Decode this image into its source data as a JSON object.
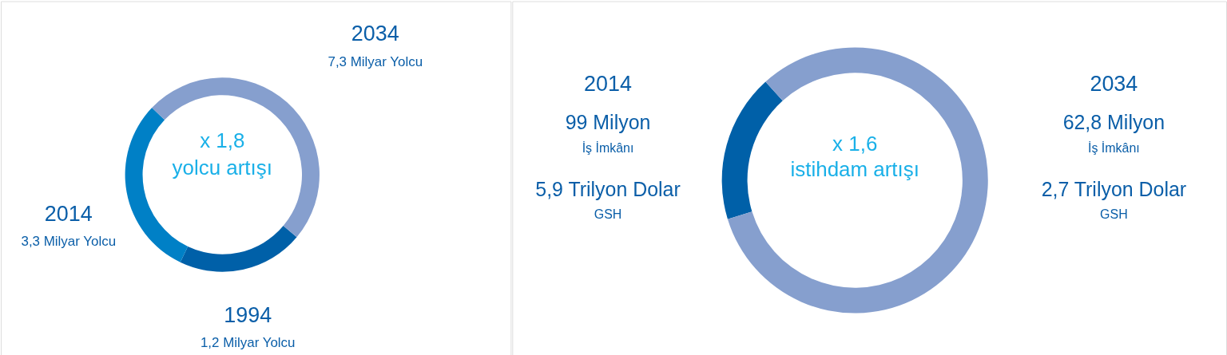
{
  "chart_data": [
    {
      "type": "donut",
      "categories": [
        "1994",
        "2014",
        "2034"
      ],
      "values": [
        21,
        30,
        49
      ],
      "colors": [
        "#0060a8",
        "#0080c6",
        "#869fce"
      ],
      "annotations": [
        "x 1,8",
        "yolcu artışı",
        "1,2 Milyar Yolcu",
        "3,3 Milyar Yolcu",
        "7,3 Milyar Yolcu"
      ]
    },
    {
      "type": "donut",
      "categories": [
        "2014",
        "2034"
      ],
      "values": [
        18,
        82
      ],
      "colors": [
        "#0060a8",
        "#869fce"
      ],
      "annotations": [
        "x 1,6",
        "istihdam artışı",
        "99 Milyon",
        "İş İmkânı",
        "5,9 Trilyon Dolar",
        "GSH",
        "62,8 Milyon",
        "İş İmkânı",
        "2,7 Trilyon Dolar",
        "GSH"
      ]
    }
  ]
}
